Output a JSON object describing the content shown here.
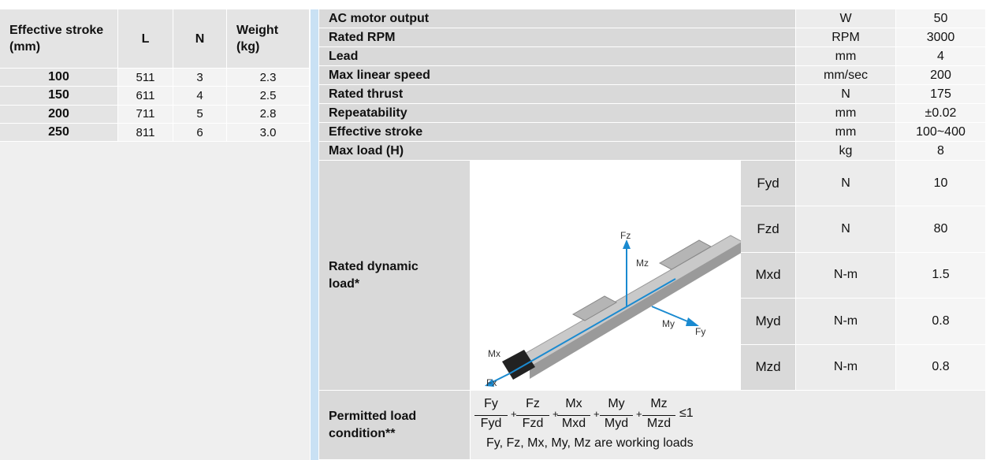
{
  "left_table": {
    "header": [
      "Effective stroke (mm)",
      "L",
      "N",
      "Weight (kg)"
    ],
    "rows": [
      [
        "100",
        "511",
        "3",
        "2.3"
      ],
      [
        "150",
        "611",
        "4",
        "2.5"
      ],
      [
        "200",
        "711",
        "5",
        "2.8"
      ],
      [
        "250",
        "811",
        "6",
        "3.0"
      ]
    ]
  },
  "spec_table": {
    "rows": [
      {
        "label": "AC motor output",
        "unit": "W",
        "value": "50"
      },
      {
        "label": "Rated RPM",
        "unit": "RPM",
        "value": "3000"
      },
      {
        "label": "Lead",
        "unit": "mm",
        "value": "4"
      },
      {
        "label": "Max linear speed",
        "unit": "mm/sec",
        "value": "200"
      },
      {
        "label": "Rated thrust",
        "unit": "N",
        "value": "175"
      },
      {
        "label": "Repeatability",
        "unit": "mm",
        "value": "±0.02"
      },
      {
        "label": "Effective stroke",
        "unit": "mm",
        "value": "100~400"
      },
      {
        "label": "Max load (H)",
        "unit": "kg",
        "value": "8"
      }
    ]
  },
  "dynamic_load": {
    "label": "Rated dynamic load*",
    "diagram_labels": [
      "Fz",
      "Mz",
      "My",
      "Fy",
      "Mx",
      "Fx"
    ],
    "rows": [
      {
        "name": "Fyd",
        "unit": "N",
        "value": "10"
      },
      {
        "name": "Fzd",
        "unit": "N",
        "value": "80"
      },
      {
        "name": "Mxd",
        "unit": "N-m",
        "value": "1.5"
      },
      {
        "name": "Myd",
        "unit": "N-m",
        "value": "0.8"
      },
      {
        "name": "Mzd",
        "unit": "N-m",
        "value": "0.8"
      }
    ]
  },
  "permitted": {
    "label": "Permitted load condition**",
    "numerators": [
      "Fy",
      "Fz",
      "Mx",
      "My",
      "Mz"
    ],
    "denominators": [
      "Fyd",
      "Fzd",
      "Mxd",
      "Myd",
      "Mzd"
    ],
    "plus": "+",
    "relation": "≤1",
    "note": "Fy, Fz, Mx, My, Mz are working loads"
  }
}
